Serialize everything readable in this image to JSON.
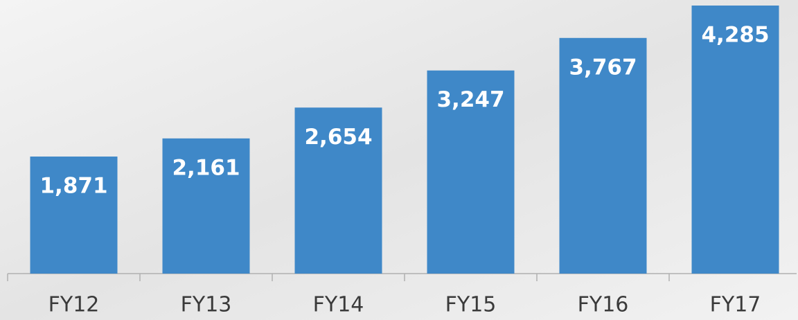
{
  "chart_data": {
    "type": "bar",
    "categories": [
      "FY12",
      "FY13",
      "FY14",
      "FY15",
      "FY16",
      "FY17"
    ],
    "values": [
      1871,
      2161,
      2654,
      3247,
      3767,
      4285
    ],
    "value_labels": [
      "1,871",
      "2,161",
      "2,654",
      "3,247",
      "3,767",
      "4,285"
    ],
    "color": "#3f88c8"
  }
}
